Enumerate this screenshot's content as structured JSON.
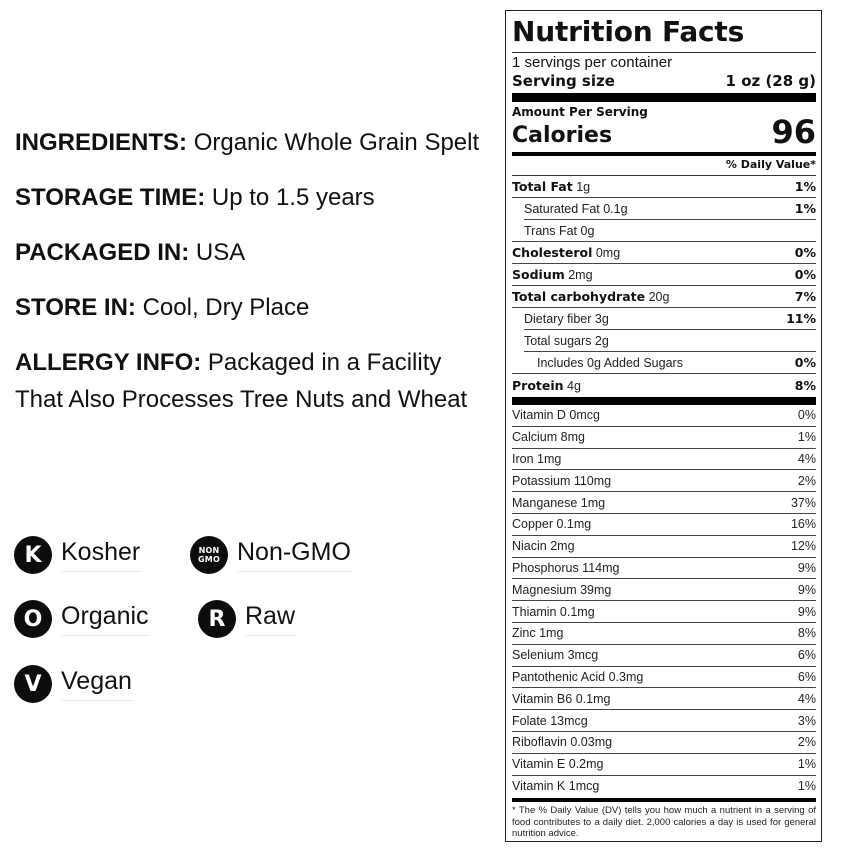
{
  "info": {
    "ingredients": {
      "label": "INGREDIENTS:",
      "value": "Organic Whole Grain Spelt"
    },
    "storage_time": {
      "label": "STORAGE TIME:",
      "value": "Up to 1.5 years"
    },
    "packaged_in": {
      "label": "PACKAGED IN:",
      "value": "USA"
    },
    "store_in": {
      "label": "STORE IN:",
      "value": "Cool, Dry Place"
    },
    "allergy_info": {
      "label": "ALLERGY INFO:",
      "value": "Packaged in a Facility That Also Processes Tree Nuts and Wheat"
    }
  },
  "badges": [
    {
      "icon": "K",
      "icon_name": "kosher-icon",
      "label": "Kosher"
    },
    {
      "icon_line1": "NON",
      "icon_line2": "GMO",
      "icon_name": "non-gmo-icon",
      "label": "Non-GMO"
    },
    {
      "icon": "O",
      "icon_name": "organic-icon",
      "label": "Organic"
    },
    {
      "icon": "R",
      "icon_name": "raw-icon",
      "label": "Raw"
    },
    {
      "icon": "V",
      "icon_name": "vegan-icon",
      "label": "Vegan"
    }
  ],
  "nutrition": {
    "title": "Nutrition Facts",
    "servings_per_container": "1 servings per container",
    "serving_size_label": "Serving size",
    "serving_size_value": "1 oz (28 g)",
    "amount_per_serving": "Amount Per Serving",
    "calories_label": "Calories",
    "calories_value": "96",
    "daily_value_header": "% Daily Value*",
    "macros": [
      {
        "name": "Total Fat",
        "amount": "1g",
        "dv": "1%"
      },
      {
        "name": "Saturated Fat",
        "amount": "0.1g",
        "dv": "1%"
      },
      {
        "name": "Trans Fat",
        "amount": "0g",
        "dv": ""
      },
      {
        "name": "Cholesterol",
        "amount": "0mg",
        "dv": "0%"
      },
      {
        "name": "Sodium",
        "amount": "2mg",
        "dv": "0%"
      },
      {
        "name": "Total carbohydrate",
        "amount": "20g",
        "dv": "7%"
      },
      {
        "name": "Dietary fiber",
        "amount": "3g",
        "dv": "11%"
      },
      {
        "name": "Total sugars",
        "amount": "2g",
        "dv": ""
      },
      {
        "name": "Includes 0g Added Sugars",
        "amount": "",
        "dv": "0%"
      },
      {
        "name": "Protein",
        "amount": "4g",
        "dv": "8%"
      }
    ],
    "micros": [
      {
        "name": "Vitamin D 0mcg",
        "dv": "0%"
      },
      {
        "name": "Calcium 8mg",
        "dv": "1%"
      },
      {
        "name": "Iron 1mg",
        "dv": "4%"
      },
      {
        "name": "Potassium 110mg",
        "dv": "2%"
      },
      {
        "name": "Manganese 1mg",
        "dv": "37%"
      },
      {
        "name": "Copper 0.1mg",
        "dv": "16%"
      },
      {
        "name": "Niacin 2mg",
        "dv": "12%"
      },
      {
        "name": "Phosphorus 114mg",
        "dv": "9%"
      },
      {
        "name": "Magnesium 39mg",
        "dv": "9%"
      },
      {
        "name": "Thiamin 0.1mg",
        "dv": "9%"
      },
      {
        "name": "Zinc 1mg",
        "dv": "8%"
      },
      {
        "name": "Selenium 3mcg",
        "dv": "6%"
      },
      {
        "name": "Pantothenic Acid 0.3mg",
        "dv": "6%"
      },
      {
        "name": "Vitamin B6 0.1mg",
        "dv": "4%"
      },
      {
        "name": "Folate 13mcg",
        "dv": "3%"
      },
      {
        "name": "Riboflavin 0.03mg",
        "dv": "2%"
      },
      {
        "name": "Vitamin E 0.2mg",
        "dv": "1%"
      },
      {
        "name": "Vitamin K 1mcg",
        "dv": "1%"
      }
    ],
    "footnote": "* The % Daily Value (DV) tells you how much a nutrient in a serving of food contributes to a daily diet. 2,000 calories a day is used for general nutrition advice."
  }
}
